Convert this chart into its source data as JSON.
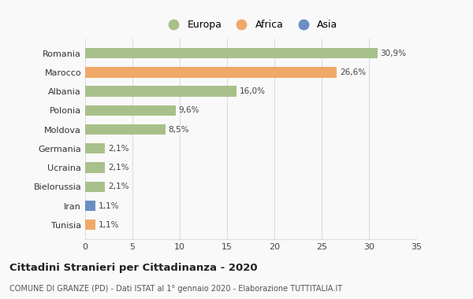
{
  "categories": [
    "Tunisia",
    "Iran",
    "Bielorussia",
    "Ucraina",
    "Germania",
    "Moldova",
    "Polonia",
    "Albania",
    "Marocco",
    "Romania"
  ],
  "values": [
    1.1,
    1.1,
    2.1,
    2.1,
    2.1,
    8.5,
    9.6,
    16.0,
    26.6,
    30.9
  ],
  "colors": [
    "#f0a868",
    "#6b8ec4",
    "#a8c08a",
    "#a8c08a",
    "#a8c08a",
    "#a8c08a",
    "#a8c08a",
    "#a8c08a",
    "#f0a868",
    "#a8c08a"
  ],
  "labels": [
    "1,1%",
    "1,1%",
    "2,1%",
    "2,1%",
    "2,1%",
    "8,5%",
    "9,6%",
    "16,0%",
    "26,6%",
    "30,9%"
  ],
  "legend_labels": [
    "Europa",
    "Africa",
    "Asia"
  ],
  "legend_colors": [
    "#a8c08a",
    "#f0a868",
    "#6b8ec4"
  ],
  "xlim": [
    0,
    35
  ],
  "xticks": [
    0,
    5,
    10,
    15,
    20,
    25,
    30,
    35
  ],
  "title": "Cittadini Stranieri per Cittadinanza - 2020",
  "subtitle": "COMUNE DI GRANZE (PD) - Dati ISTAT al 1° gennaio 2020 - Elaborazione TUTTITALIA.IT",
  "bg_color": "#f9f9f9",
  "bar_height": 0.55,
  "grid_color": "#dddddd"
}
